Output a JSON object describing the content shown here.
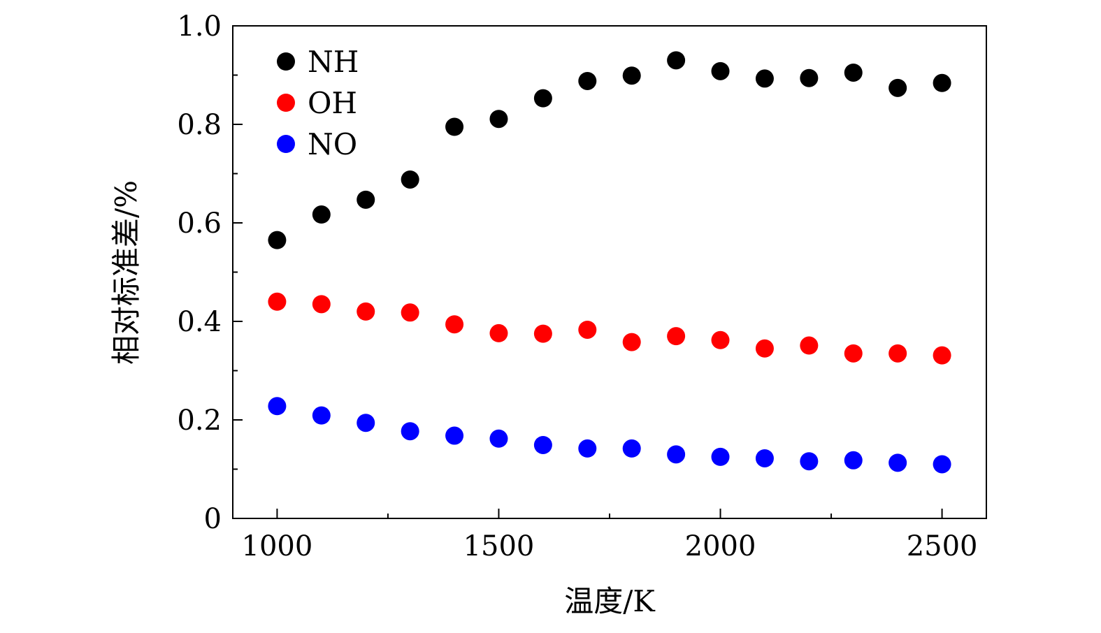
{
  "chart_data": {
    "type": "scatter",
    "xlabel": "温度/K",
    "ylabel": "相对标准差/%",
    "xlim": [
      900,
      2600
    ],
    "ylim": [
      0,
      1.0
    ],
    "xticks": [
      1000,
      1500,
      2000,
      2500
    ],
    "xtick_labels": [
      "1000",
      "1500",
      "2000",
      "2500"
    ],
    "yticks": [
      0,
      0.2,
      0.4,
      0.6,
      0.8,
      1.0
    ],
    "ytick_labels": [
      "0",
      "0.2",
      "0.4",
      "0.6",
      "0.8",
      "1.0"
    ],
    "grid": false,
    "legend_position": "top-left",
    "x": [
      1000,
      1100,
      1200,
      1300,
      1400,
      1500,
      1600,
      1700,
      1800,
      1900,
      2000,
      2100,
      2200,
      2300,
      2400,
      2500
    ],
    "series": [
      {
        "name": "NH",
        "color": "#000000",
        "values": [
          0.565,
          0.617,
          0.647,
          0.688,
          0.795,
          0.811,
          0.853,
          0.888,
          0.899,
          0.93,
          0.908,
          0.893,
          0.894,
          0.905,
          0.874,
          0.884
        ]
      },
      {
        "name": "OH",
        "color": "#ff0000",
        "values": [
          0.44,
          0.435,
          0.42,
          0.418,
          0.394,
          0.376,
          0.375,
          0.383,
          0.358,
          0.37,
          0.362,
          0.345,
          0.351,
          0.335,
          0.335,
          0.331
        ]
      },
      {
        "name": "NO",
        "color": "#0000ff",
        "values": [
          0.228,
          0.209,
          0.194,
          0.177,
          0.168,
          0.162,
          0.149,
          0.142,
          0.142,
          0.13,
          0.125,
          0.122,
          0.116,
          0.118,
          0.113,
          0.11
        ]
      }
    ]
  }
}
